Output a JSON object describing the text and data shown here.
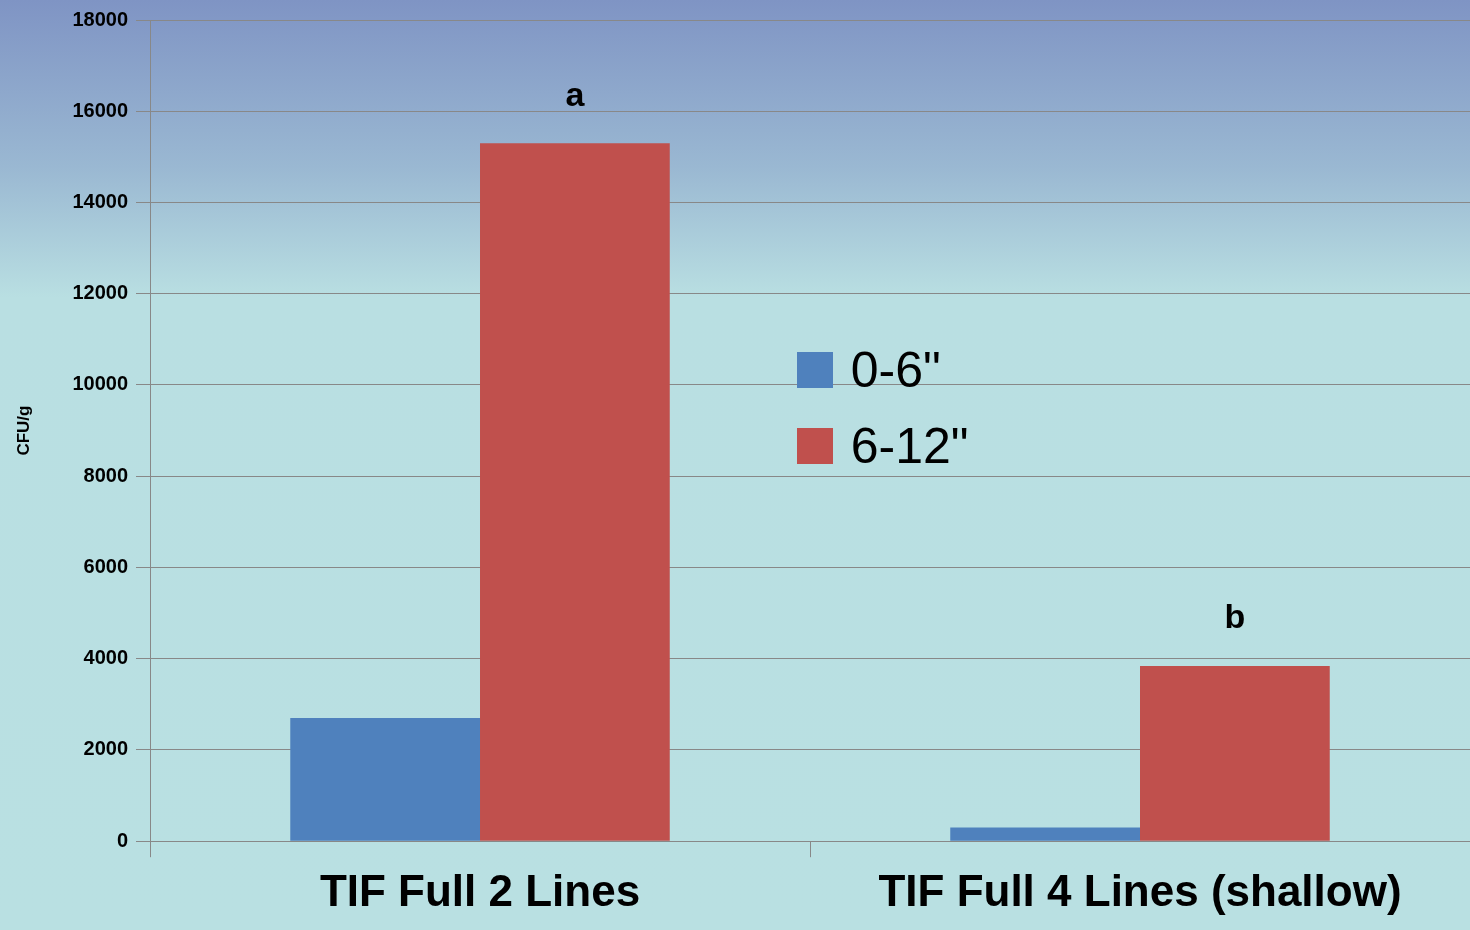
{
  "chart_data": {
    "type": "bar",
    "ylabel": "CFU/g",
    "categories": [
      "TIF Full 2 Lines",
      "TIF Full 4 Lines (shallow)"
    ],
    "series": [
      {
        "name": "0-6\"",
        "color": "#4f81bd",
        "values": [
          2700,
          300
        ]
      },
      {
        "name": "6-12\"",
        "color": "#c0504d",
        "values": [
          15300,
          3840
        ]
      }
    ],
    "ylim": [
      0,
      18000
    ],
    "yticks": [
      0,
      2000,
      4000,
      6000,
      8000,
      10000,
      12000,
      14000,
      16000,
      18000
    ],
    "grid": "y",
    "legend": "center",
    "annotations": [
      {
        "text": "a",
        "x": "TIF Full 2 Lines",
        "y": 15300
      },
      {
        "text": "b",
        "x": "TIF Full 4 Lines (shallow)",
        "y": 3840
      }
    ]
  }
}
